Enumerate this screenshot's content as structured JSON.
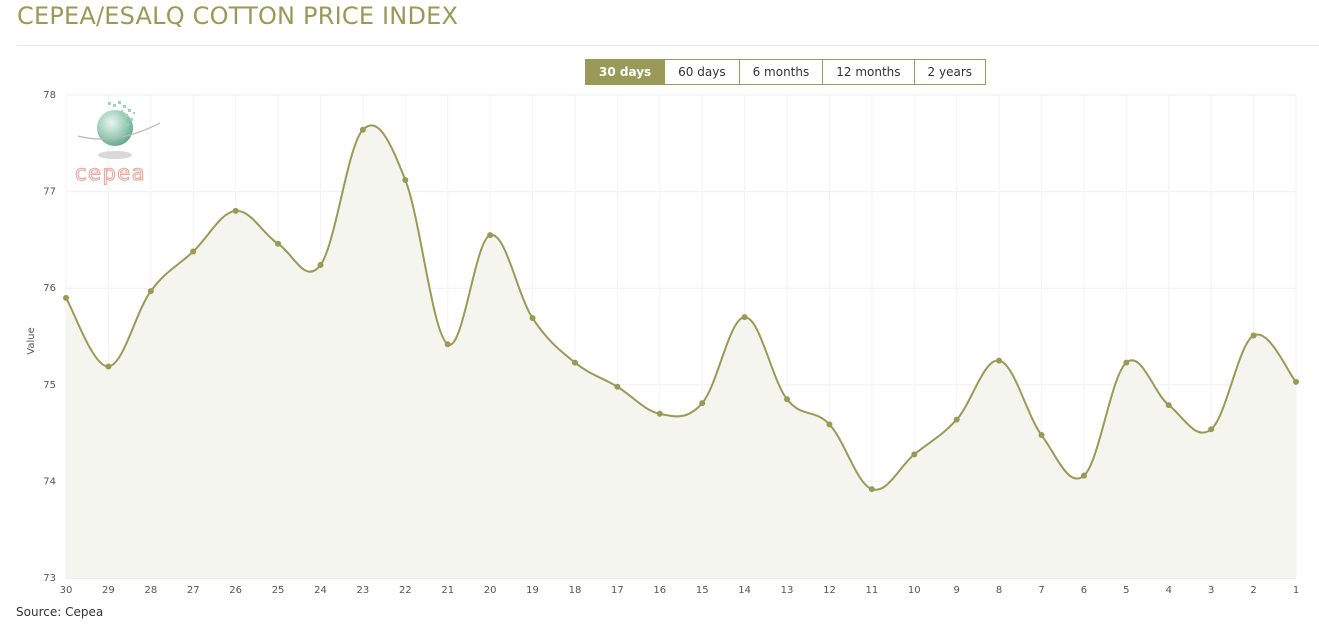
{
  "header": {
    "title": "CEPEA/ESALQ COTTON PRICE INDEX"
  },
  "range_buttons": [
    {
      "label": "30 days",
      "active": true
    },
    {
      "label": "60 days",
      "active": false
    },
    {
      "label": "6 months",
      "active": false
    },
    {
      "label": "12 months",
      "active": false
    },
    {
      "label": "2 years",
      "active": false
    }
  ],
  "logo": {
    "text": "cepea",
    "icon": "cepea-globe-logo"
  },
  "footer": {
    "source": "Source: Cepea"
  },
  "colors": {
    "accent": "#9a9a58",
    "fill": "#f5f5ef",
    "logo_text": "#e8a8a0"
  },
  "chart_data": {
    "type": "area",
    "title": "",
    "xlabel": "",
    "ylabel": "Value",
    "x": [
      "30",
      "29",
      "28",
      "27",
      "26",
      "25",
      "24",
      "23",
      "22",
      "21",
      "20",
      "19",
      "18",
      "17",
      "16",
      "15",
      "14",
      "13",
      "12",
      "11",
      "10",
      "9",
      "8",
      "7",
      "6",
      "5",
      "4",
      "3",
      "2",
      "1"
    ],
    "series": [
      {
        "values": [
          75.9,
          75.19,
          75.97,
          76.38,
          76.8,
          76.46,
          76.24,
          77.64,
          77.12,
          75.42,
          76.55,
          75.69,
          75.23,
          74.98,
          74.7,
          74.81,
          75.7,
          74.85,
          74.59,
          73.92,
          74.28,
          74.64,
          75.25,
          74.48,
          74.06,
          75.23,
          74.79,
          74.54,
          75.51,
          75.03
        ]
      }
    ],
    "ylim": [
      73,
      78
    ],
    "yticks": [
      73,
      74,
      75,
      76,
      77,
      78
    ],
    "grid": true,
    "legend": "none"
  }
}
